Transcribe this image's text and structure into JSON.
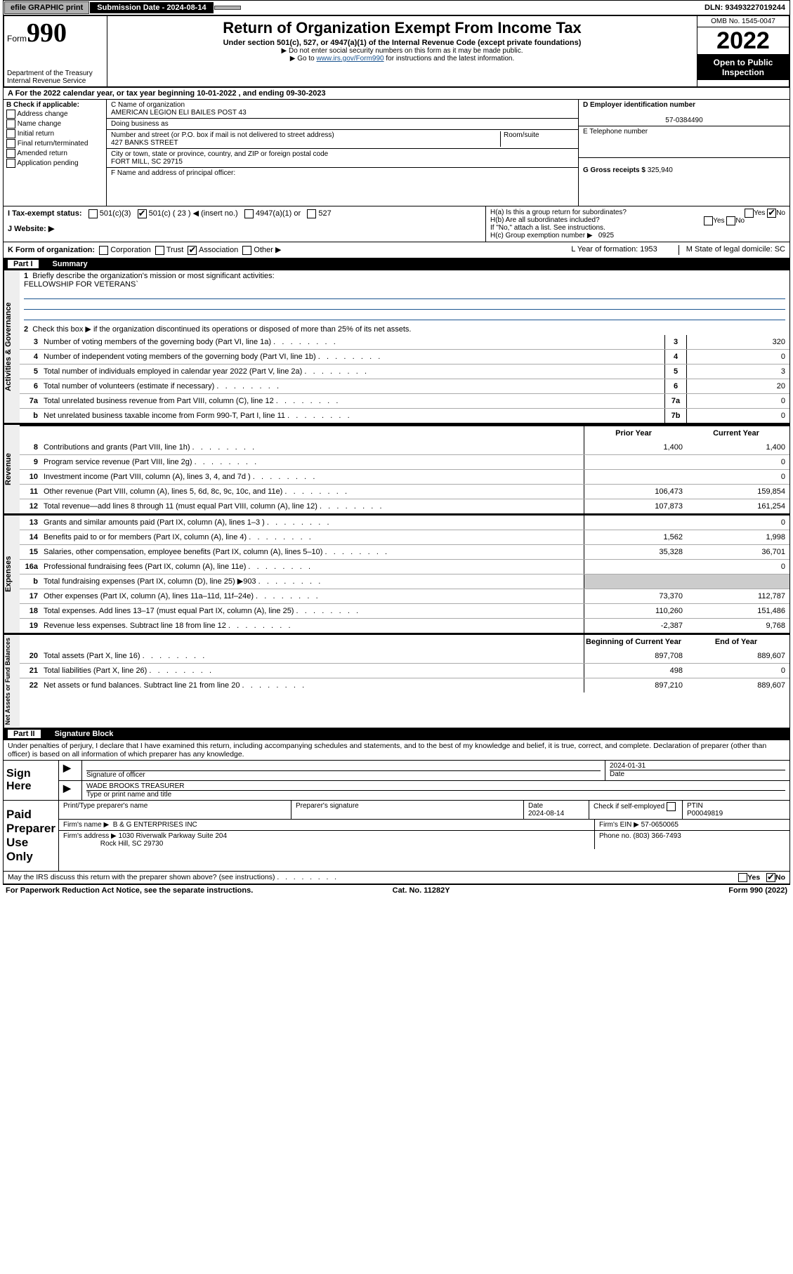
{
  "topbar": {
    "efile": "efile GRAPHIC print",
    "subdate_label": "Submission Date - 2024-08-14",
    "dln": "DLN: 93493227019244"
  },
  "header": {
    "form_label": "Form",
    "form_num": "990",
    "dept": "Department of the Treasury",
    "irs": "Internal Revenue Service",
    "title": "Return of Organization Exempt From Income Tax",
    "sub": "Under section 501(c), 527, or 4947(a)(1) of the Internal Revenue Code (except private foundations)",
    "note1": "▶ Do not enter social security numbers on this form as it may be made public.",
    "note2": "▶ Go to ",
    "link": "www.irs.gov/Form990",
    "note3": " for instructions and the latest information.",
    "omb": "OMB No. 1545-0047",
    "year": "2022",
    "open": "Open to Public Inspection"
  },
  "rowA": "A For the 2022 calendar year, or tax year beginning 10-01-2022    , and ending 09-30-2023",
  "colB": {
    "title": "B Check if applicable:",
    "opts": [
      "Address change",
      "Name change",
      "Initial return",
      "Final return/terminated",
      "Amended return",
      "Application pending"
    ]
  },
  "colC": {
    "c_label": "C Name of organization",
    "name": "AMERICAN LEGION ELI BAILES POST 43",
    "dba": "Doing business as",
    "addr_label": "Number and street (or P.O. box if mail is not delivered to street address)",
    "addr": "427 BANKS STREET",
    "room": "Room/suite",
    "city_label": "City or town, state or province, country, and ZIP or foreign postal code",
    "city": "FORT MILL, SC  29715",
    "f_label": "F  Name and address of principal officer:"
  },
  "colD": {
    "d_label": "D Employer identification number",
    "ein": "57-0384490",
    "e_label": "E Telephone number",
    "g_label": "G Gross receipts $",
    "g_val": "325,940"
  },
  "hgroup": {
    "ha": "H(a)  Is this a group return for subordinates?",
    "hb": "H(b)  Are all subordinates included?",
    "hb_note": "If \"No,\" attach a list. See instructions.",
    "hc": "H(c)  Group exemption number ▶",
    "hc_val": "0925"
  },
  "rowI": {
    "label": "I   Tax-exempt status:",
    "o1": "501(c)(3)",
    "o2": "501(c) ( 23 ) ◀ (insert no.)",
    "o3": "4947(a)(1) or",
    "o4": "527"
  },
  "rowJ": "J   Website: ▶",
  "rowK": {
    "label": "K Form of organization:",
    "o1": "Corporation",
    "o2": "Trust",
    "o3": "Association",
    "o4": "Other ▶",
    "l": "L Year of formation: 1953",
    "m": "M State of legal domicile: SC"
  },
  "part1": {
    "hdr": "Part I",
    "title": "Summary",
    "q1": "Briefly describe the organization's mission or most significant activities:",
    "mission": "FELLOWSHIP FOR VETERANS`",
    "q2": "Check this box ▶        if the organization discontinued its operations or disposed of more than 25% of its net assets."
  },
  "gov": {
    "tab": "Activities & Governance",
    "lines": [
      {
        "n": "3",
        "d": "Number of voting members of the governing body (Part VI, line 1a)",
        "box": "3",
        "v": "320"
      },
      {
        "n": "4",
        "d": "Number of independent voting members of the governing body (Part VI, line 1b)",
        "box": "4",
        "v": "0"
      },
      {
        "n": "5",
        "d": "Total number of individuals employed in calendar year 2022 (Part V, line 2a)",
        "box": "5",
        "v": "3"
      },
      {
        "n": "6",
        "d": "Total number of volunteers (estimate if necessary)",
        "box": "6",
        "v": "20"
      },
      {
        "n": "7a",
        "d": "Total unrelated business revenue from Part VIII, column (C), line 12",
        "box": "7a",
        "v": "0"
      },
      {
        "n": "b",
        "d": "Net unrelated business taxable income from Form 990-T, Part I, line 11",
        "box": "7b",
        "v": "0"
      }
    ]
  },
  "rev": {
    "tab": "Revenue",
    "hdr_prior": "Prior Year",
    "hdr_curr": "Current Year",
    "lines": [
      {
        "n": "8",
        "d": "Contributions and grants (Part VIII, line 1h)",
        "p": "1,400",
        "c": "1,400"
      },
      {
        "n": "9",
        "d": "Program service revenue (Part VIII, line 2g)",
        "p": "",
        "c": "0"
      },
      {
        "n": "10",
        "d": "Investment income (Part VIII, column (A), lines 3, 4, and 7d )",
        "p": "",
        "c": "0"
      },
      {
        "n": "11",
        "d": "Other revenue (Part VIII, column (A), lines 5, 6d, 8c, 9c, 10c, and 11e)",
        "p": "106,473",
        "c": "159,854"
      },
      {
        "n": "12",
        "d": "Total revenue—add lines 8 through 11 (must equal Part VIII, column (A), line 12)",
        "p": "107,873",
        "c": "161,254"
      }
    ]
  },
  "exp": {
    "tab": "Expenses",
    "lines": [
      {
        "n": "13",
        "d": "Grants and similar amounts paid (Part IX, column (A), lines 1–3 )",
        "p": "",
        "c": "0"
      },
      {
        "n": "14",
        "d": "Benefits paid to or for members (Part IX, column (A), line 4)",
        "p": "1,562",
        "c": "1,998"
      },
      {
        "n": "15",
        "d": "Salaries, other compensation, employee benefits (Part IX, column (A), lines 5–10)",
        "p": "35,328",
        "c": "36,701"
      },
      {
        "n": "16a",
        "d": "Professional fundraising fees (Part IX, column (A), line 11e)",
        "p": "",
        "c": "0"
      },
      {
        "n": "b",
        "d": "Total fundraising expenses (Part IX, column (D), line 25) ▶903",
        "p": "grey",
        "c": "grey"
      },
      {
        "n": "17",
        "d": "Other expenses (Part IX, column (A), lines 11a–11d, 11f–24e)",
        "p": "73,370",
        "c": "112,787"
      },
      {
        "n": "18",
        "d": "Total expenses. Add lines 13–17 (must equal Part IX, column (A), line 25)",
        "p": "110,260",
        "c": "151,486"
      },
      {
        "n": "19",
        "d": "Revenue less expenses. Subtract line 18 from line 12",
        "p": "-2,387",
        "c": "9,768"
      }
    ]
  },
  "net": {
    "tab": "Net Assets or Fund Balances",
    "hdr_beg": "Beginning of Current Year",
    "hdr_end": "End of Year",
    "lines": [
      {
        "n": "20",
        "d": "Total assets (Part X, line 16)",
        "p": "897,708",
        "c": "889,607"
      },
      {
        "n": "21",
        "d": "Total liabilities (Part X, line 26)",
        "p": "498",
        "c": "0"
      },
      {
        "n": "22",
        "d": "Net assets or fund balances. Subtract line 21 from line 20",
        "p": "897,210",
        "c": "889,607"
      }
    ]
  },
  "part2": {
    "hdr": "Part II",
    "title": "Signature Block",
    "decl": "Under penalties of perjury, I declare that I have examined this return, including accompanying schedules and statements, and to the best of my knowledge and belief, it is true, correct, and complete. Declaration of preparer (other than officer) is based on all information of which preparer has any knowledge."
  },
  "sign": {
    "lbl": "Sign Here",
    "sig_officer": "Signature of officer",
    "date": "Date",
    "date_val": "2024-01-31",
    "name": "WADE BROOKS TREASURER",
    "name_lbl": "Type or print name and title"
  },
  "paid": {
    "lbl": "Paid Preparer Use Only",
    "h1": "Print/Type preparer's name",
    "h2": "Preparer's signature",
    "h3": "Date",
    "h3v": "2024-08-14",
    "h4": "Check         if self-employed",
    "h5": "PTIN",
    "h5v": "P00049819",
    "firm_lbl": "Firm's name     ▶",
    "firm": "B & G ENTERPRISES INC",
    "ein_lbl": "Firm's EIN ▶",
    "ein": "57-0650065",
    "addr_lbl": "Firm's address ▶",
    "addr1": "1030 Riverwalk Parkway Suite 204",
    "addr2": "Rock Hill, SC  29730",
    "phone_lbl": "Phone no.",
    "phone": "(803) 366-7493"
  },
  "may": "May the IRS discuss this return with the preparer shown above? (see instructions)",
  "footer": {
    "l": "For Paperwork Reduction Act Notice, see the separate instructions.",
    "m": "Cat. No. 11282Y",
    "r": "Form 990 (2022)"
  }
}
